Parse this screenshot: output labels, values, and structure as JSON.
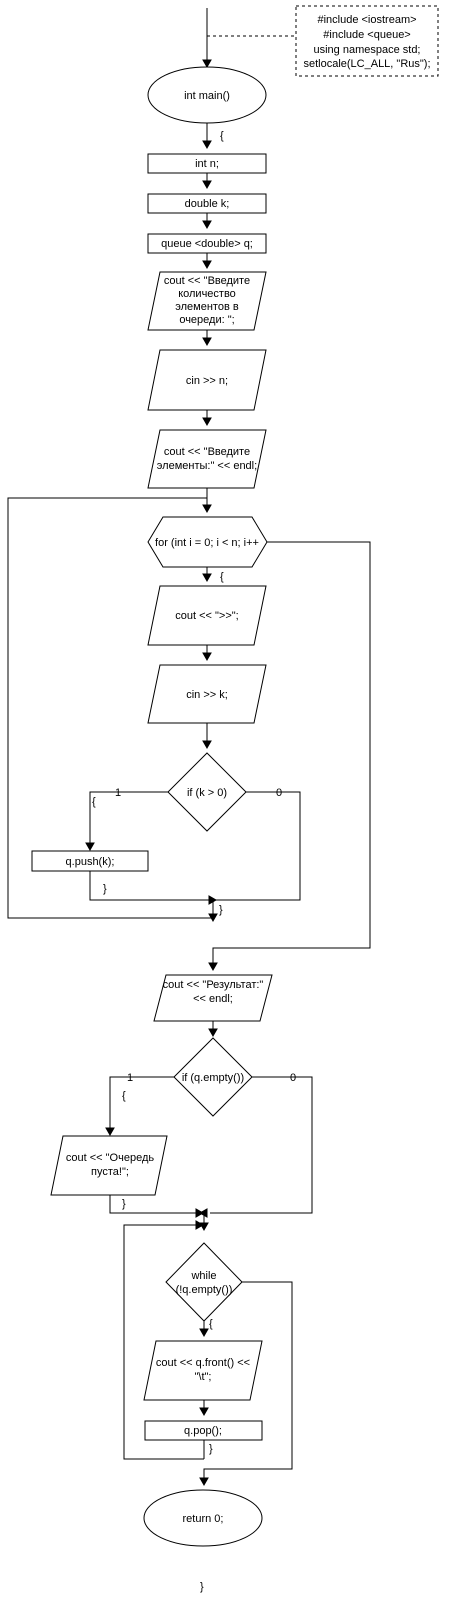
{
  "header_note": {
    "lines": [
      "#include <iostream>",
      "#include <queue>",
      "using namespace std;",
      "setlocale(LC_ALL, \"Rus\");"
    ]
  },
  "main": {
    "start": "int main()",
    "brace_open": "{",
    "decl_n": "int n;",
    "decl_k": "double k;",
    "decl_q": "queue <double> q;",
    "prompt_count": [
      "cout << \"Введите",
      "количество",
      "элементов в",
      "очереди: \";"
    ],
    "read_n": "cin >> n;",
    "prompt_elements": [
      "cout << \"Введите",
      "элементы:\" << endl;"
    ]
  },
  "for_loop": {
    "header": "for (int i = 0; i < n; i++",
    "brace_open": "{",
    "print_prompt": "cout << \">>\";",
    "read_k": "cin >> k;",
    "condition": "if (k > 0)",
    "branch_true": "1",
    "branch_false": "0",
    "true_brace_open": "{",
    "push": "q.push(k);",
    "true_brace_close": "}",
    "brace_close": "}"
  },
  "result": {
    "print_result": [
      "cout << \"Результат:\"",
      "<< endl;"
    ],
    "condition": "if (q.empty())",
    "branch_true": "1",
    "branch_false": "0",
    "true_brace_open": "{",
    "empty_message": [
      "cout << \"Очередь",
      "пуста!\";"
    ],
    "true_brace_close": "}"
  },
  "while_loop": {
    "condition": [
      "while",
      "(!q.empty())"
    ],
    "brace_open": "{",
    "print_front": [
      "cout << q.front() <<",
      "\"\\t\";"
    ],
    "pop": "q.pop();",
    "brace_close": "}"
  },
  "end": {
    "return": "return 0;",
    "brace_close": "}"
  }
}
